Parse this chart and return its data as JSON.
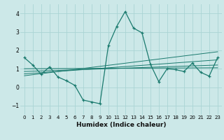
{
  "xlabel": "Humidex (Indice chaleur)",
  "bg_color": "#cce8e8",
  "line_color": "#1a7a6e",
  "xlim": [
    -0.5,
    23.5
  ],
  "ylim": [
    -1.5,
    4.5
  ],
  "xticks": [
    0,
    1,
    2,
    3,
    4,
    5,
    6,
    7,
    8,
    9,
    10,
    11,
    12,
    13,
    14,
    15,
    16,
    17,
    18,
    19,
    20,
    21,
    22,
    23
  ],
  "yticks": [
    -1,
    0,
    1,
    2,
    3,
    4
  ],
  "grid_color": "#aad4d4",
  "main_x": [
    0,
    1,
    2,
    3,
    4,
    5,
    6,
    7,
    8,
    9,
    10,
    11,
    12,
    13,
    14,
    15,
    16,
    17,
    18,
    19,
    20,
    21,
    22,
    23
  ],
  "main_y": [
    1.6,
    1.2,
    0.7,
    1.1,
    0.55,
    0.35,
    0.1,
    -0.7,
    -0.8,
    -0.9,
    2.25,
    3.3,
    4.1,
    3.2,
    2.95,
    1.25,
    0.3,
    1.0,
    0.95,
    0.85,
    1.3,
    0.8,
    0.6,
    1.6
  ],
  "straight_lines": [
    {
      "x": [
        0,
        23
      ],
      "y": [
        1.0,
        1.05
      ]
    },
    {
      "x": [
        0,
        23
      ],
      "y": [
        0.85,
        1.2
      ]
    },
    {
      "x": [
        0,
        23
      ],
      "y": [
        0.72,
        1.48
      ]
    },
    {
      "x": [
        0,
        23
      ],
      "y": [
        0.62,
        1.92
      ]
    }
  ]
}
